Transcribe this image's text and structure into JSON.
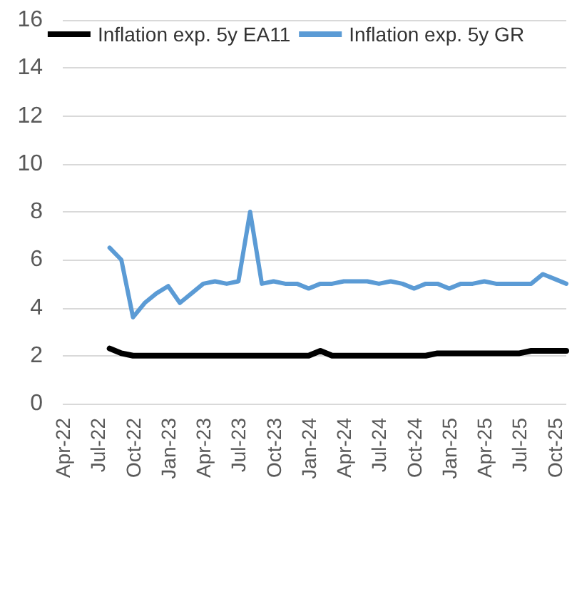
{
  "chart_data": {
    "type": "line",
    "categories": [
      "Apr-22",
      null,
      null,
      "Jul-22",
      null,
      null,
      "Oct-22",
      null,
      null,
      "Jan-23",
      null,
      null,
      "Apr-23",
      null,
      null,
      "Jul-23",
      null,
      null,
      "Oct-23",
      null,
      null,
      "Jan-24",
      null,
      null,
      "Apr-24",
      null,
      null,
      "Jul-24",
      null,
      null,
      "Oct-24",
      null,
      null,
      "Jan-25",
      null,
      null,
      "Apr-25",
      null,
      null,
      "Jul-25",
      null,
      null,
      "Oct-25",
      null
    ],
    "series": [
      {
        "name": "Inflation exp. 5y EA11",
        "color": "#000000",
        "values": [
          null,
          null,
          null,
          null,
          2.3,
          2.1,
          2.0,
          2.0,
          2.0,
          2.0,
          2.0,
          2.0,
          2.0,
          2.0,
          2.0,
          2.0,
          2.0,
          2.0,
          2.0,
          2.0,
          2.0,
          2.0,
          2.2,
          2.0,
          2.0,
          2.0,
          2.0,
          2.0,
          2.0,
          2.0,
          2.0,
          2.0,
          2.1,
          2.1,
          2.1,
          2.1,
          2.1,
          2.1,
          2.1,
          2.1,
          2.2,
          2.2,
          2.2,
          2.2
        ]
      },
      {
        "name": "Inflation exp. 5y GR",
        "color": "#5b9bd5",
        "values": [
          null,
          null,
          null,
          null,
          6.5,
          6.0,
          3.6,
          4.2,
          4.6,
          4.9,
          4.2,
          4.6,
          5.0,
          5.1,
          5.0,
          5.1,
          8.0,
          5.0,
          5.1,
          5.0,
          5.0,
          4.8,
          5.0,
          5.0,
          5.1,
          5.1,
          5.1,
          5.0,
          5.1,
          5.0,
          4.8,
          5.0,
          5.0,
          4.8,
          5.0,
          5.0,
          5.1,
          5.0,
          5.0,
          5.0,
          5.0,
          5.4,
          5.2,
          5.0
        ]
      }
    ],
    "ylim": [
      0,
      16
    ],
    "yticks": [
      0,
      2,
      4,
      6,
      8,
      10,
      12,
      14,
      16
    ],
    "grid": "y",
    "legend": "top",
    "marker": "none",
    "line_style": "solid"
  }
}
